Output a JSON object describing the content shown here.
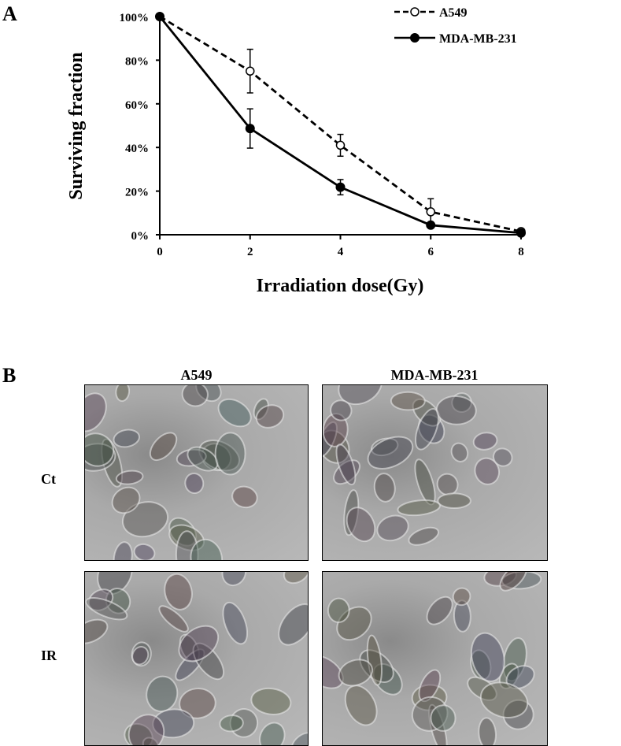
{
  "panels": {
    "a_label": "A",
    "b_label": "B"
  },
  "chart_data": {
    "type": "line",
    "title": "",
    "xlabel": "Irradiation dose(Gy)",
    "ylabel": "Surviving fraction",
    "x": [
      0,
      2,
      4,
      6,
      8
    ],
    "xticks": [
      "0",
      "2",
      "4",
      "6",
      "8"
    ],
    "yticks": [
      "0%",
      "20%",
      "40%",
      "60%",
      "80%",
      "100%"
    ],
    "xlim": [
      0,
      8
    ],
    "ylim": [
      0,
      100
    ],
    "grid": false,
    "legend_position": "top-right",
    "series": [
      {
        "name": "A549",
        "style": "dashed",
        "marker": "open-circle",
        "values": [
          100,
          75,
          41,
          10.5,
          1.5
        ],
        "errors": [
          0,
          10,
          5,
          6,
          0
        ]
      },
      {
        "name": "MDA-MB-231",
        "style": "solid",
        "marker": "filled-circle",
        "values": [
          100,
          48.7,
          21.8,
          4.4,
          0.8
        ],
        "errors": [
          0,
          9,
          3.5,
          0,
          0
        ]
      }
    ]
  },
  "micrographs": {
    "columns": [
      "A549",
      "MDA-MB-231"
    ],
    "rows": [
      "Ct",
      "IR"
    ]
  }
}
